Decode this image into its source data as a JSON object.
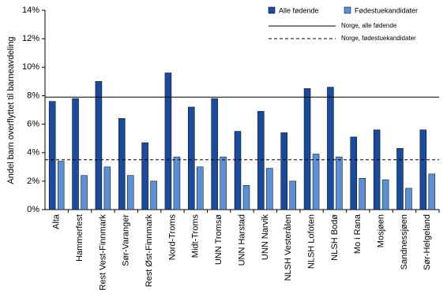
{
  "chart_data": {
    "type": "bar",
    "y_label": "Andel barn overflyttet til barneavdeling",
    "categories": [
      "Alta",
      "Hammerfest",
      "Rest Vest-Finnmark",
      "Sør-Varanger",
      "Rest Øst-Finnmark",
      "Nord-Troms",
      "Midt-Troms",
      "UNN Tromsø",
      "UNN Harstad",
      "UNN Narvik",
      "NLSH Vesterålen",
      "NLSH Lofoten",
      "NLSH Bodø",
      "Mo i Rana",
      "Mosjøen",
      "Sandnessjøen",
      "Sør-Helgeland"
    ],
    "series": [
      {
        "name": "Alle fødende",
        "color": "#1c4a9c",
        "values": [
          7.6,
          7.8,
          9.0,
          6.4,
          4.7,
          9.6,
          7.2,
          7.8,
          5.5,
          6.9,
          5.4,
          8.5,
          8.6,
          5.1,
          5.6,
          4.3,
          5.6
        ]
      },
      {
        "name": "Fødestuekandidater",
        "color": "#5b8fd6",
        "values": [
          3.4,
          2.4,
          3.0,
          2.4,
          2.0,
          3.7,
          3.0,
          3.7,
          1.7,
          2.9,
          2.0,
          3.9,
          3.7,
          2.2,
          2.1,
          1.5,
          2.5
        ]
      }
    ],
    "reference_lines": [
      {
        "name": "Norge, alle fødende",
        "value": 7.9,
        "style": "solid"
      },
      {
        "name": "Norge, fødestuekandidater",
        "value": 3.5,
        "style": "dashed"
      }
    ],
    "ylim": [
      0,
      14
    ],
    "yticks": [
      {
        "value": 0,
        "label": "0%"
      },
      {
        "value": 2,
        "label": "2%"
      },
      {
        "value": 4,
        "label": "4%"
      },
      {
        "value": 6,
        "label": "6%"
      },
      {
        "value": 8,
        "label": "8%"
      },
      {
        "value": 10,
        "label": "10%"
      },
      {
        "value": 12,
        "label": "12%"
      },
      {
        "value": 14,
        "label": "14%"
      }
    ]
  }
}
